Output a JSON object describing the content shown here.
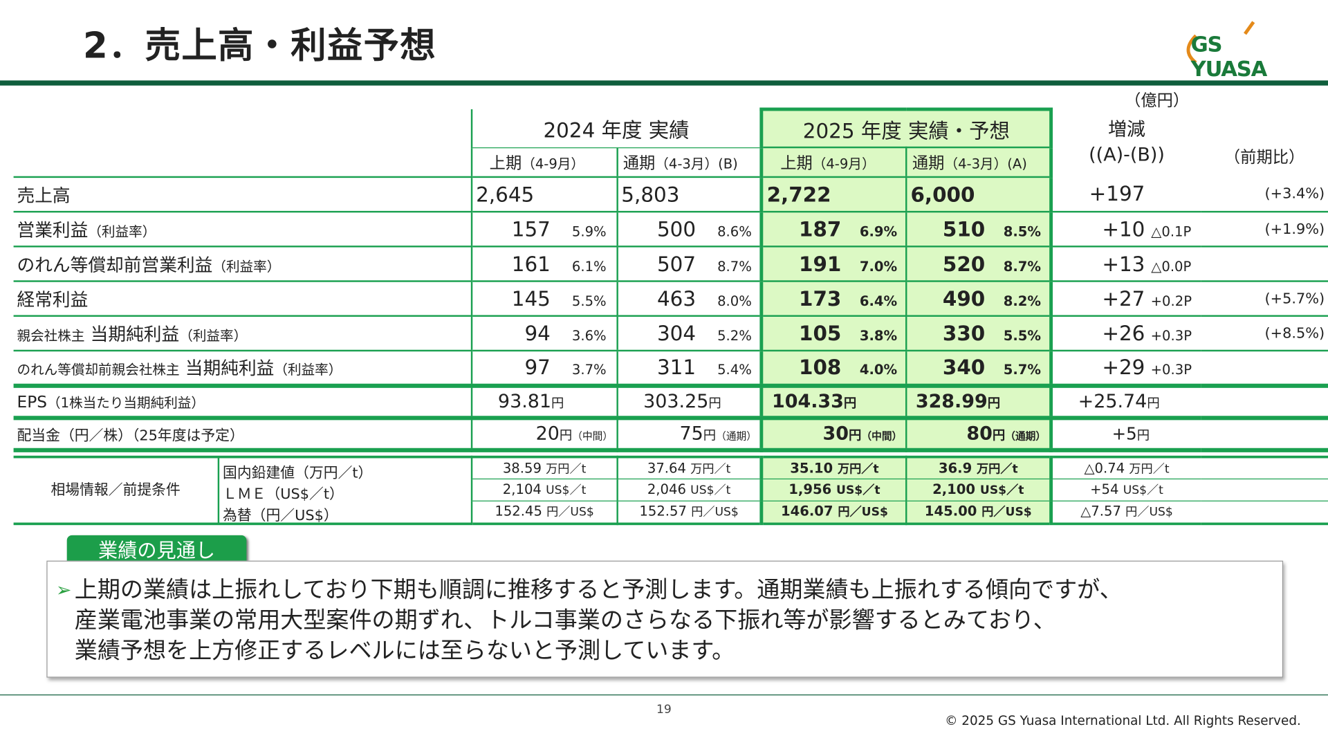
{
  "title": "2．売上高・利益予想",
  "logo": "GS YUASA",
  "unit": "（億円）",
  "headers": {
    "fy2024": "2024 年度 実績",
    "fy2025": "2025 年度 実績・予想",
    "change": "増減",
    "change_formula": "((A)-(B))",
    "yoy": "（前期比）",
    "h1_2024": "上期",
    "h1_2024_p": "（4-9月）",
    "fy_2024": "通期",
    "fy_2024_p": "（4-3月）(B)",
    "h1_2025": "上期",
    "h1_2025_p": "（4-9月）",
    "fy_2025": "通期",
    "fy_2025_p": "（4-3月）(A)"
  },
  "rows": [
    {
      "label": "売上高",
      "note": "",
      "c": [
        [
          "2,645",
          ""
        ],
        [
          "5,803",
          ""
        ],
        [
          "2,722",
          ""
        ],
        [
          "6,000",
          ""
        ]
      ],
      "chg": "+197",
      "pt": "",
      "yoy": "(+3.4%)"
    },
    {
      "label": "営業利益",
      "note": "（利益率）",
      "c": [
        [
          "157",
          "5.9%"
        ],
        [
          "500",
          "8.6%"
        ],
        [
          "187",
          "6.9%"
        ],
        [
          "510",
          "8.5%"
        ]
      ],
      "chg": "+10",
      "pt": "△0.1P",
      "yoy": "(+1.9%)"
    },
    {
      "label": "のれん等償却前営業利益",
      "note": "（利益率）",
      "c": [
        [
          "161",
          "6.1%"
        ],
        [
          "507",
          "8.7%"
        ],
        [
          "191",
          "7.0%"
        ],
        [
          "520",
          "8.7%"
        ]
      ],
      "chg": "+13",
      "pt": "△0.0P",
      "yoy": ""
    },
    {
      "label": "経常利益",
      "note": "",
      "c": [
        [
          "145",
          "5.5%"
        ],
        [
          "463",
          "8.0%"
        ],
        [
          "173",
          "6.4%"
        ],
        [
          "490",
          "8.2%"
        ]
      ],
      "chg": "+27",
      "pt": "+0.2P",
      "yoy": "(+5.7%)"
    },
    {
      "prefix": "親会社株主",
      "label": "当期純利益",
      "note": "（利益率）",
      "c": [
        [
          "94",
          "3.6%"
        ],
        [
          "304",
          "5.2%"
        ],
        [
          "105",
          "3.8%"
        ],
        [
          "330",
          "5.5%"
        ]
      ],
      "chg": "+26",
      "pt": "+0.3P",
      "yoy": "(+8.5%)"
    },
    {
      "prefix": "のれん等償却前親会社株主",
      "label": "当期純利益",
      "note": "（利益率）",
      "c": [
        [
          "97",
          "3.7%"
        ],
        [
          "311",
          "5.4%"
        ],
        [
          "108",
          "4.0%"
        ],
        [
          "340",
          "5.7%"
        ]
      ],
      "chg": "+29",
      "pt": "+0.3P",
      "yoy": ""
    }
  ],
  "eps": {
    "label": "EPS",
    "note": "（1株当たり当期純利益）",
    "unit": "円",
    "c": [
      "93.81",
      "303.25",
      "104.33",
      "328.99"
    ],
    "chg": "+25.74"
  },
  "dividend": {
    "label": "配当金",
    "note": "（円／株）（25年度は予定）",
    "unit": "円",
    "c": [
      [
        "20",
        "（中間）"
      ],
      [
        "75",
        "（通期）"
      ],
      [
        "30",
        "（中間）"
      ],
      [
        "80",
        "（通期）"
      ]
    ],
    "chg": "+5"
  },
  "market": {
    "label": "相場情報／前提条件",
    "rows": [
      {
        "label": "国内鉛建値（万円／t）",
        "u": "万円／t",
        "c": [
          "38.59",
          "37.64",
          "35.10",
          "36.9"
        ],
        "chg": "△0.74"
      },
      {
        "label": "ＬＭＥ（US$／t）",
        "u": "US$／t",
        "c": [
          "2,104",
          "2,046",
          "1,956",
          "2,100"
        ],
        "chg": "+54"
      },
      {
        "label": "為替（円／US$）",
        "u": "円／US$",
        "c": [
          "152.45",
          "152.57",
          "146.07",
          "145.00"
        ],
        "chg": "△7.57"
      }
    ]
  },
  "outlook": {
    "tab": "業績の見通し",
    "lines": [
      "上期の業績は上振れしており下期も順調に推移すると予測します。通期業績も上振れする傾向ですが、",
      "産業電池事業の常用大型案件の期ずれ、トルコ事業のさらなる下振れ等が影響するとみており、",
      "業績予想を上方修正するレベルには至らないと予測しています。"
    ]
  },
  "page": "19",
  "copyright": "© 2025 GS Yuasa International Ltd. All Rights Reserved.",
  "colors": {
    "accent": "#1aa050",
    "highlight": "#dcf9c4",
    "bar": "#0f5e3c"
  }
}
